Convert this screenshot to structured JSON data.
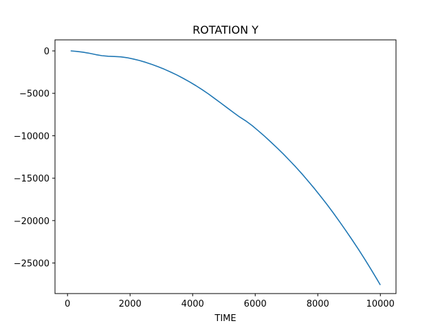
{
  "chart_data": {
    "type": "line",
    "title": "ROTATION Y",
    "xlabel": "TIME",
    "ylabel": "",
    "xlim": [
      -400,
      10500
    ],
    "ylim": [
      -28600,
      1300
    ],
    "xticks": [
      0,
      2000,
      4000,
      6000,
      8000,
      10000
    ],
    "yticks": [
      0,
      -5000,
      -10000,
      -15000,
      -20000,
      -25000
    ],
    "xtick_labels": [
      "0",
      "2000",
      "4000",
      "6000",
      "8000",
      "10000"
    ],
    "ytick_labels": [
      "0",
      "−5000",
      "−10000",
      "−15000",
      "−20000",
      "−25000"
    ],
    "grid": false,
    "series": [
      {
        "name": "",
        "color": "#1f77b4",
        "x": [
          100,
          300,
          500,
          700,
          900,
          1100,
          1300,
          1500,
          1700,
          1900,
          2100,
          2300,
          2500,
          2700,
          2900,
          3100,
          3300,
          3500,
          3700,
          3900,
          4100,
          4300,
          4500,
          4700,
          4900,
          5100,
          5300,
          5500,
          5700,
          5900,
          6100,
          6300,
          6500,
          6700,
          6900,
          7100,
          7300,
          7500,
          7700,
          7900,
          8100,
          8300,
          8500,
          8700,
          8900,
          9100,
          9300,
          9500,
          9700,
          9900,
          10000
        ],
        "y": [
          0,
          -60,
          -150,
          -280,
          -430,
          -560,
          -630,
          -660,
          -700,
          -800,
          -950,
          -1130,
          -1350,
          -1600,
          -1870,
          -2170,
          -2500,
          -2850,
          -3240,
          -3650,
          -4090,
          -4560,
          -5060,
          -5600,
          -6150,
          -6700,
          -7250,
          -7780,
          -8250,
          -8800,
          -9420,
          -10060,
          -10740,
          -11440,
          -12160,
          -12920,
          -13700,
          -14520,
          -15380,
          -16260,
          -17180,
          -18130,
          -19120,
          -20150,
          -21200,
          -22280,
          -23390,
          -24540,
          -25740,
          -26960,
          -27590
        ]
      }
    ]
  }
}
